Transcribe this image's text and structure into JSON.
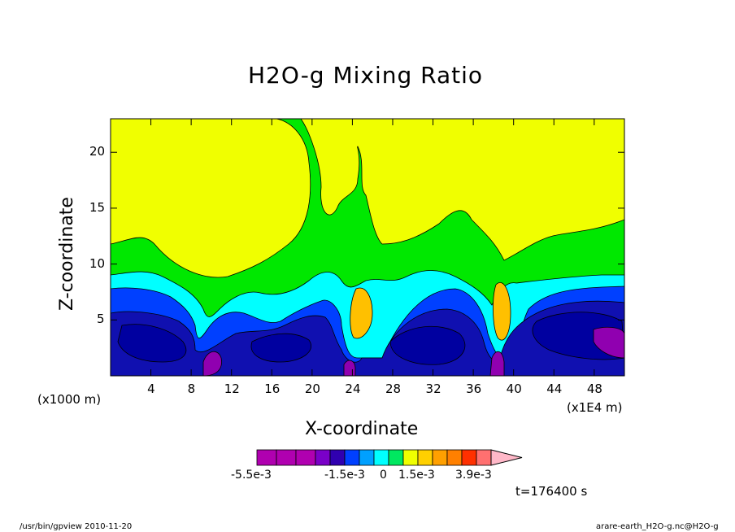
{
  "chart_data": {
    "type": "heatmap",
    "title": "H2O-g Mixing Ratio",
    "xlabel": "X-coordinate",
    "ylabel": "Z-coordinate",
    "x_unit_left": "(x1000 m)",
    "x_unit_right": "(x1E4 m)",
    "xlim": [
      0,
      51
    ],
    "ylim": [
      0,
      23
    ],
    "xticks": [
      "4",
      "8",
      "12",
      "16",
      "20",
      "24",
      "28",
      "32",
      "36",
      "40",
      "44",
      "48"
    ],
    "xtick_values": [
      4,
      8,
      12,
      16,
      20,
      24,
      28,
      32,
      36,
      40,
      44,
      48
    ],
    "yticks": [
      "5",
      "10",
      "15",
      "20"
    ],
    "ytick_values": [
      5,
      10,
      15,
      20
    ],
    "time_label": "t=176400 s",
    "colorbar": {
      "colors": [
        "#b000b0",
        "#b000b0",
        "#b000b0",
        "#7a00c8",
        "#3000b0",
        "#0040ff",
        "#00a0ff",
        "#00ffff",
        "#00e860",
        "#f0ff00",
        "#ffd000",
        "#ffa000",
        "#ff8000",
        "#ff3000",
        "#ff7070",
        "#ffb8c8"
      ],
      "labels": [
        "-5.5e-3",
        "-1.5e-3",
        "0",
        "1.5e-3",
        "3.9e-3"
      ]
    },
    "footer_left": "/usr/bin/gpview  2010-11-20",
    "footer_right": "arare-earth_H2O-g.nc@H2O-g",
    "palette": {
      "yellow": "#f0ff00",
      "green": "#00e800",
      "cyan": "#00ffff",
      "blue": "#0040ff",
      "darkblue": "#1010b0",
      "navy": "#0000a0",
      "purple": "#9000b0",
      "orange": "#ffc000"
    }
  }
}
